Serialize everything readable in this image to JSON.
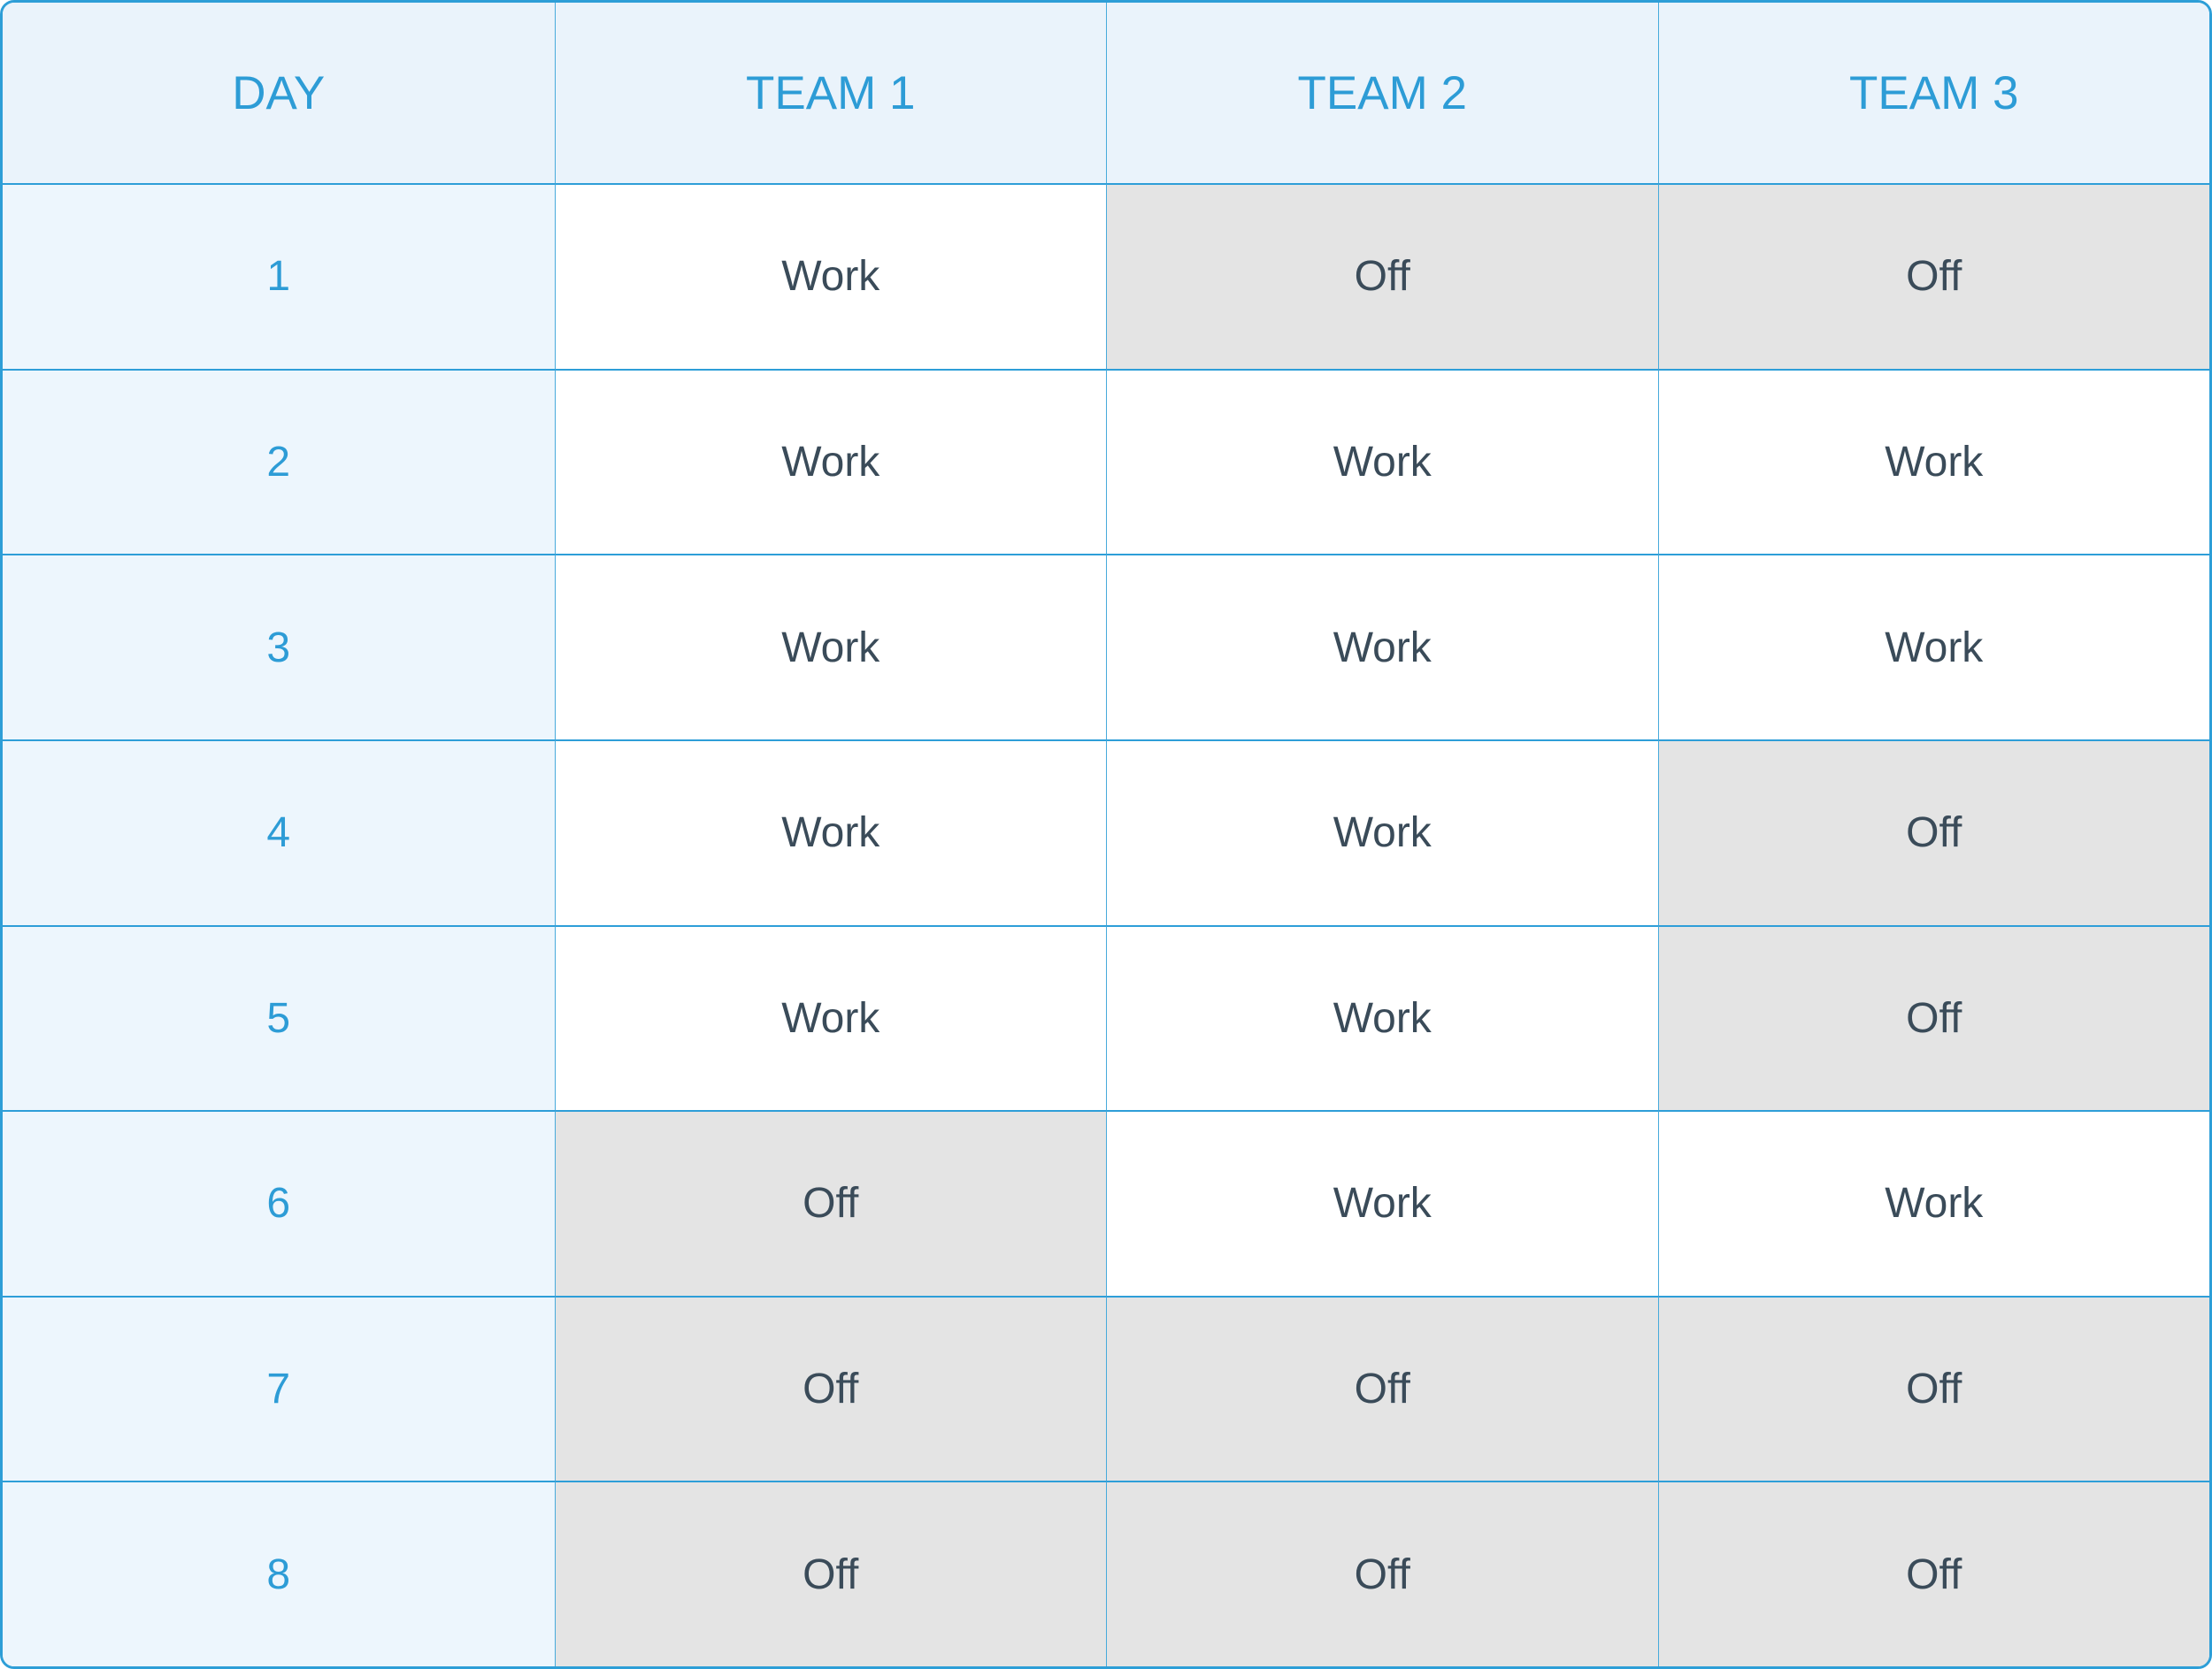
{
  "colors": {
    "accent_blue": "#2d9cd6",
    "border_blue": "#2e9ed8",
    "header_background": "#eaf3fb",
    "day_column_background": "#edf6fd",
    "off_cell_background": "#e4e4e4",
    "work_cell_background": "#ffffff",
    "cell_text": "#3a4b59"
  },
  "table": {
    "headers": [
      "DAY",
      "TEAM 1",
      "TEAM 2",
      "TEAM 3"
    ],
    "rows": [
      {
        "day": "1",
        "team1": "Work",
        "team2": "Off",
        "team3": "Off"
      },
      {
        "day": "2",
        "team1": "Work",
        "team2": "Work",
        "team3": "Work"
      },
      {
        "day": "3",
        "team1": "Work",
        "team2": "Work",
        "team3": "Work"
      },
      {
        "day": "4",
        "team1": "Work",
        "team2": "Work",
        "team3": "Off"
      },
      {
        "day": "5",
        "team1": "Work",
        "team2": "Work",
        "team3": "Off"
      },
      {
        "day": "6",
        "team1": "Off",
        "team2": "Work",
        "team3": "Work"
      },
      {
        "day": "7",
        "team1": "Off",
        "team2": "Off",
        "team3": "Off"
      },
      {
        "day": "8",
        "team1": "Off",
        "team2": "Off",
        "team3": "Off"
      }
    ]
  }
}
